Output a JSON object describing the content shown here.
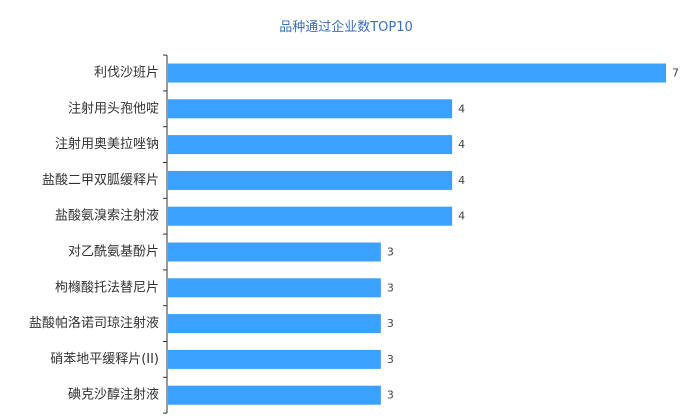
{
  "chart_data": {
    "type": "bar",
    "orientation": "horizontal",
    "title": "品种通过企业数TOP10",
    "categories": [
      "利伐沙班片",
      "注射用头孢他啶",
      "注射用奥美拉唑钠",
      "盐酸二甲双胍缓释片",
      "盐酸氨溴索注射液",
      "对乙酰氨基酚片",
      "枸橼酸托法替尼片",
      "盐酸帕洛诺司琼注射液",
      "硝苯地平缓释片(II)",
      "碘克沙醇注射液"
    ],
    "values": [
      7,
      4,
      4,
      4,
      4,
      3,
      3,
      3,
      3,
      3
    ],
    "xlim": [
      0,
      7
    ],
    "grid": false,
    "legend": "none",
    "colors": {
      "bar": "#3ba1ff",
      "axis": "#333333",
      "label": "#333333",
      "value_label": "#444444",
      "title": "#3a6fb8"
    }
  }
}
